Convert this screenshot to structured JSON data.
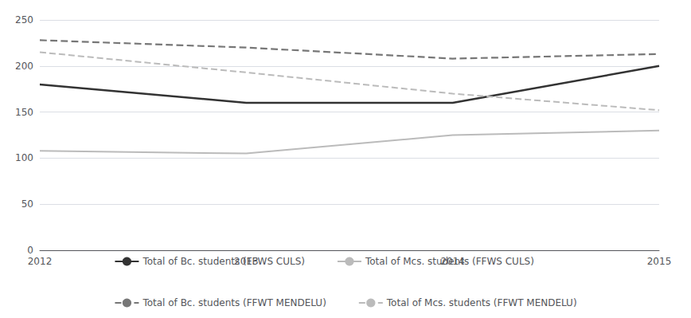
{
  "chart_data": {
    "type": "line",
    "x": [
      2012,
      2013,
      2014,
      2015
    ],
    "series": [
      {
        "name": "Total of Bc. students (FFWS CULS)",
        "color": "#333333",
        "line_style": "solid",
        "values": [
          180,
          160,
          160,
          200
        ]
      },
      {
        "name": "Total of Mcs. students (FFWS CULS)",
        "color": "#bbbbbb",
        "line_style": "solid",
        "values": [
          108,
          105,
          125,
          130
        ]
      },
      {
        "name": "Total of Bc. students (FFWT MENDELU)",
        "color": "#777777",
        "line_style": "dashed",
        "values": [
          228,
          220,
          208,
          213
        ]
      },
      {
        "name": "Total of Mcs. students (FFWT MENDELU)",
        "color": "#bbbbbb",
        "line_style": "dashed",
        "values": [
          215,
          193,
          170,
          152
        ]
      }
    ],
    "xlim": [
      2012,
      2015
    ],
    "xticks": [
      2012,
      2013,
      2014,
      2015
    ],
    "ylim": [
      0,
      250
    ],
    "yticks": [
      0,
      50,
      100,
      150,
      200,
      250
    ],
    "grid": true,
    "legend": "bottom"
  }
}
